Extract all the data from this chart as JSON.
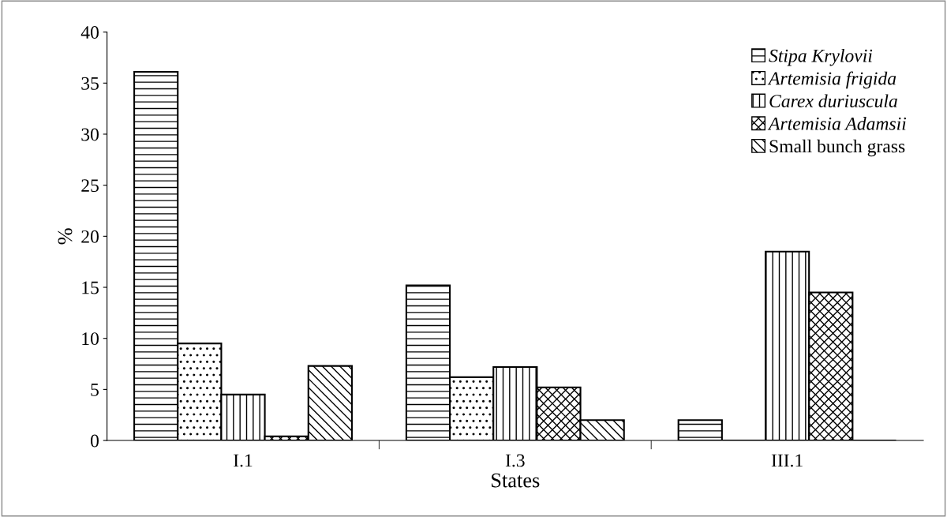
{
  "chart_data": {
    "type": "bar",
    "xlabel": "States",
    "ylabel": "%",
    "categories": [
      "I.1",
      "I.3",
      "III.1"
    ],
    "series": [
      {
        "name": "Stipa Krylovii",
        "color": "#000000",
        "values": [
          36.1,
          15.2,
          2.0
        ]
      },
      {
        "name": "Artemisia frigida",
        "color": "#000000",
        "values": [
          9.5,
          6.2,
          0
        ]
      },
      {
        "name": "Carex duriuscula",
        "color": "#000000",
        "values": [
          4.5,
          7.2,
          18.5
        ]
      },
      {
        "name": "Artemisia Adamsii",
        "color": "#000000",
        "values": [
          0.4,
          5.2,
          14.5
        ]
      },
      {
        "name": "Small bunch grass",
        "color": "#000000",
        "values": [
          7.3,
          2.0,
          0
        ]
      }
    ],
    "ylim": [
      0,
      40
    ],
    "yticks": [
      0,
      5,
      10,
      15,
      20,
      25,
      30,
      35,
      40
    ],
    "grid": false,
    "legend": "top right"
  }
}
